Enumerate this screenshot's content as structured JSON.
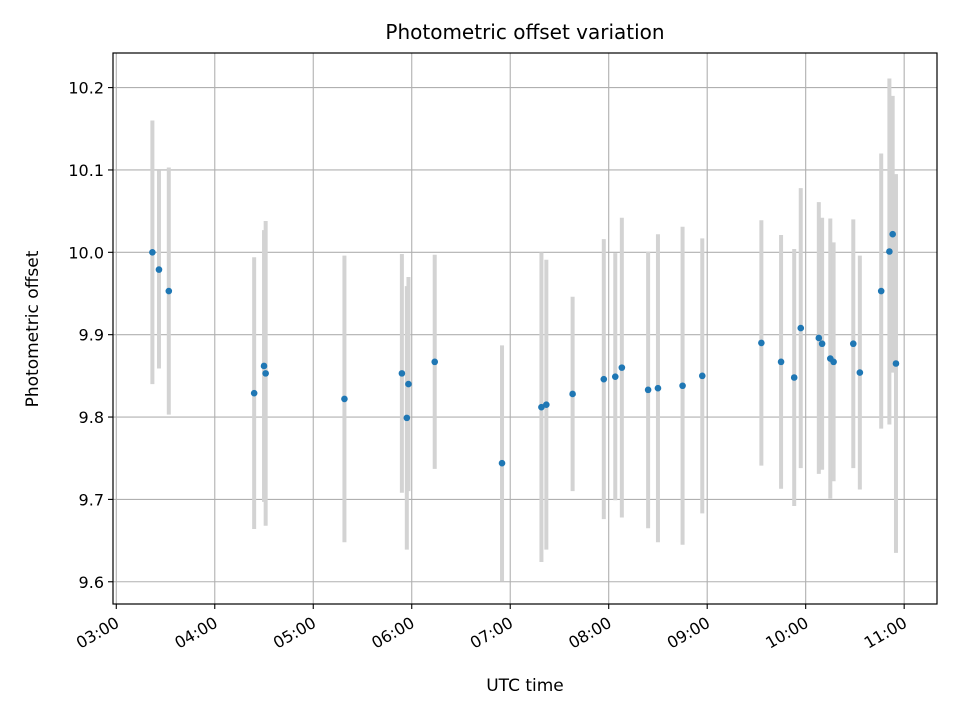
{
  "chart_data": {
    "type": "scatter",
    "title": "Photometric offset variation",
    "xlabel": "UTC time",
    "ylabel": "Photometric offset",
    "x_ticks": [
      "03:00",
      "04:00",
      "05:00",
      "06:00",
      "07:00",
      "08:00",
      "09:00",
      "10:00",
      "11:00"
    ],
    "y_ticks": [
      "9.6",
      "9.7",
      "9.8",
      "9.9",
      "10.0",
      "10.1",
      "10.2"
    ],
    "xlim": [
      "02:58",
      "11:20"
    ],
    "ylim": [
      9.573,
      10.242
    ],
    "grid": true,
    "marker_color": "#1f77b4",
    "errorbar_color": "#d3d3d3",
    "series": [
      {
        "points": [
          {
            "x": "03:22",
            "y": 10.0,
            "yerr": 0.16
          },
          {
            "x": "03:26",
            "y": 9.979,
            "yerr": 0.12
          },
          {
            "x": "03:32",
            "y": 9.953,
            "yerr": 0.15
          },
          {
            "x": "04:24",
            "y": 9.829,
            "yerr": 0.165
          },
          {
            "x": "04:30",
            "y": 9.862,
            "yerr": 0.165
          },
          {
            "x": "04:31",
            "y": 9.853,
            "yerr": 0.185
          },
          {
            "x": "05:19",
            "y": 9.822,
            "yerr": 0.174
          },
          {
            "x": "05:54",
            "y": 9.853,
            "yerr": 0.145
          },
          {
            "x": "05:57",
            "y": 9.799,
            "yerr": 0.16
          },
          {
            "x": "05:58",
            "y": 9.84,
            "yerr": 0.13
          },
          {
            "x": "06:14",
            "y": 9.867,
            "yerr": 0.13
          },
          {
            "x": "06:55",
            "y": 9.744,
            "yerr": 0.143
          },
          {
            "x": "07:19",
            "y": 9.812,
            "yerr": 0.188
          },
          {
            "x": "07:22",
            "y": 9.815,
            "yerr": 0.176
          },
          {
            "x": "07:38",
            "y": 9.828,
            "yerr": 0.118
          },
          {
            "x": "07:57",
            "y": 9.846,
            "yerr": 0.17
          },
          {
            "x": "08:04",
            "y": 9.849,
            "yerr": 0.15
          },
          {
            "x": "08:08",
            "y": 9.86,
            "yerr": 0.182
          },
          {
            "x": "08:24",
            "y": 9.833,
            "yerr": 0.168
          },
          {
            "x": "08:30",
            "y": 9.835,
            "yerr": 0.187
          },
          {
            "x": "08:45",
            "y": 9.838,
            "yerr": 0.193
          },
          {
            "x": "08:57",
            "y": 9.85,
            "yerr": 0.167
          },
          {
            "x": "09:33",
            "y": 9.89,
            "yerr": 0.149
          },
          {
            "x": "09:45",
            "y": 9.867,
            "yerr": 0.154
          },
          {
            "x": "09:53",
            "y": 9.848,
            "yerr": 0.156
          },
          {
            "x": "09:57",
            "y": 9.908,
            "yerr": 0.17
          },
          {
            "x": "10:08",
            "y": 9.896,
            "yerr": 0.165
          },
          {
            "x": "10:10",
            "y": 9.889,
            "yerr": 0.153
          },
          {
            "x": "10:15",
            "y": 9.871,
            "yerr": 0.17
          },
          {
            "x": "10:17",
            "y": 9.867,
            "yerr": 0.145
          },
          {
            "x": "10:29",
            "y": 9.889,
            "yerr": 0.151
          },
          {
            "x": "10:33",
            "y": 9.854,
            "yerr": 0.142
          },
          {
            "x": "10:46",
            "y": 9.953,
            "yerr": 0.167
          },
          {
            "x": "10:51",
            "y": 10.001,
            "yerr": 0.21
          },
          {
            "x": "10:53",
            "y": 10.022,
            "yerr": 0.168
          },
          {
            "x": "10:55",
            "y": 9.865,
            "yerr": 0.23
          }
        ]
      }
    ]
  }
}
